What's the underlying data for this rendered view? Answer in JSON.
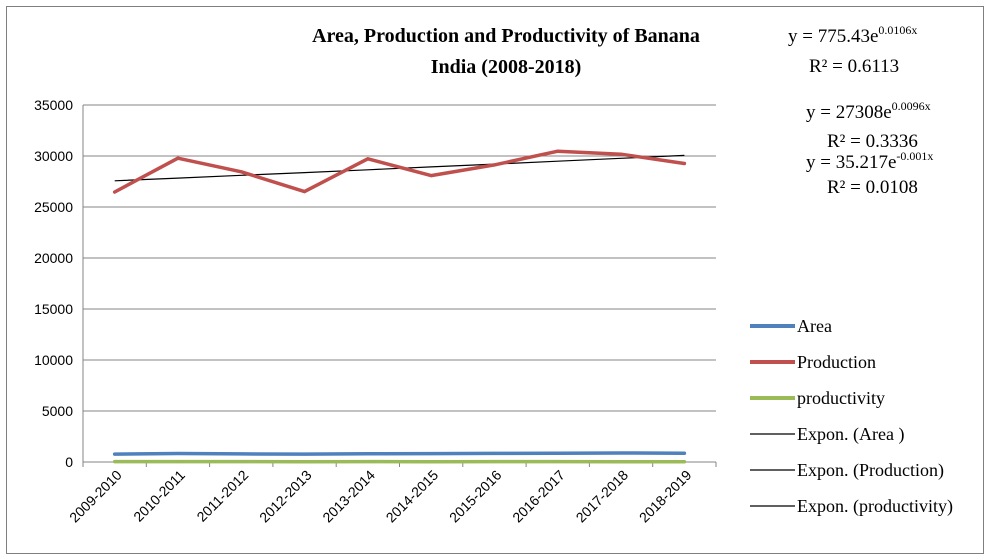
{
  "chart_data": {
    "type": "line",
    "title_line1": "Area, Production and Productivity of Banana",
    "title_line2": "India (2008-2018)",
    "categories": [
      "2009-2010",
      "2010-2011",
      "2011-2012",
      "2012-2013",
      "2013-2014",
      "2014-2015",
      "2015-2016",
      "2016-2017",
      "2017-2018",
      "2018-2019"
    ],
    "ylim": [
      0,
      35000
    ],
    "yticks": [
      0,
      5000,
      10000,
      15000,
      20000,
      25000,
      30000,
      35000
    ],
    "grid": true,
    "legend_position": "right",
    "series": [
      {
        "name": "Area",
        "color": "#4f81bd",
        "values": [
          770,
          830,
          796,
          776,
          803,
          822,
          841,
          860,
          884,
          863
        ]
      },
      {
        "name": "Production",
        "color": "#c0504d",
        "values": [
          26470,
          29780,
          28455,
          26510,
          29725,
          28080,
          29125,
          30475,
          30180,
          29265
        ]
      },
      {
        "name": "productivity",
        "color": "#9bbb59",
        "values": [
          34.4,
          35.9,
          35.7,
          34.2,
          37.0,
          34.2,
          34.6,
          35.4,
          34.1,
          33.9
        ]
      }
    ],
    "trendlines": [
      {
        "name": "Expon. (Area )",
        "color": "#000000",
        "a": 775.43,
        "b": 0.0106
      },
      {
        "name": "Expon. (Production)",
        "color": "#000000",
        "a": 27308,
        "b": 0.0096
      },
      {
        "name": "Expon. (productivity)",
        "color": "#000000",
        "a": 35.217,
        "b": -0.001
      }
    ],
    "equations": [
      {
        "base": "y = 775.43e",
        "exp": "0.0106x",
        "r2": "R² = 0.6113"
      },
      {
        "base": "y = 27308e",
        "exp": "0.0096x",
        "r2": "R² = 0.3336"
      },
      {
        "base": "y = 35.217e",
        "exp": "-0.001x",
        "r2": "R² = 0.0108"
      }
    ]
  }
}
